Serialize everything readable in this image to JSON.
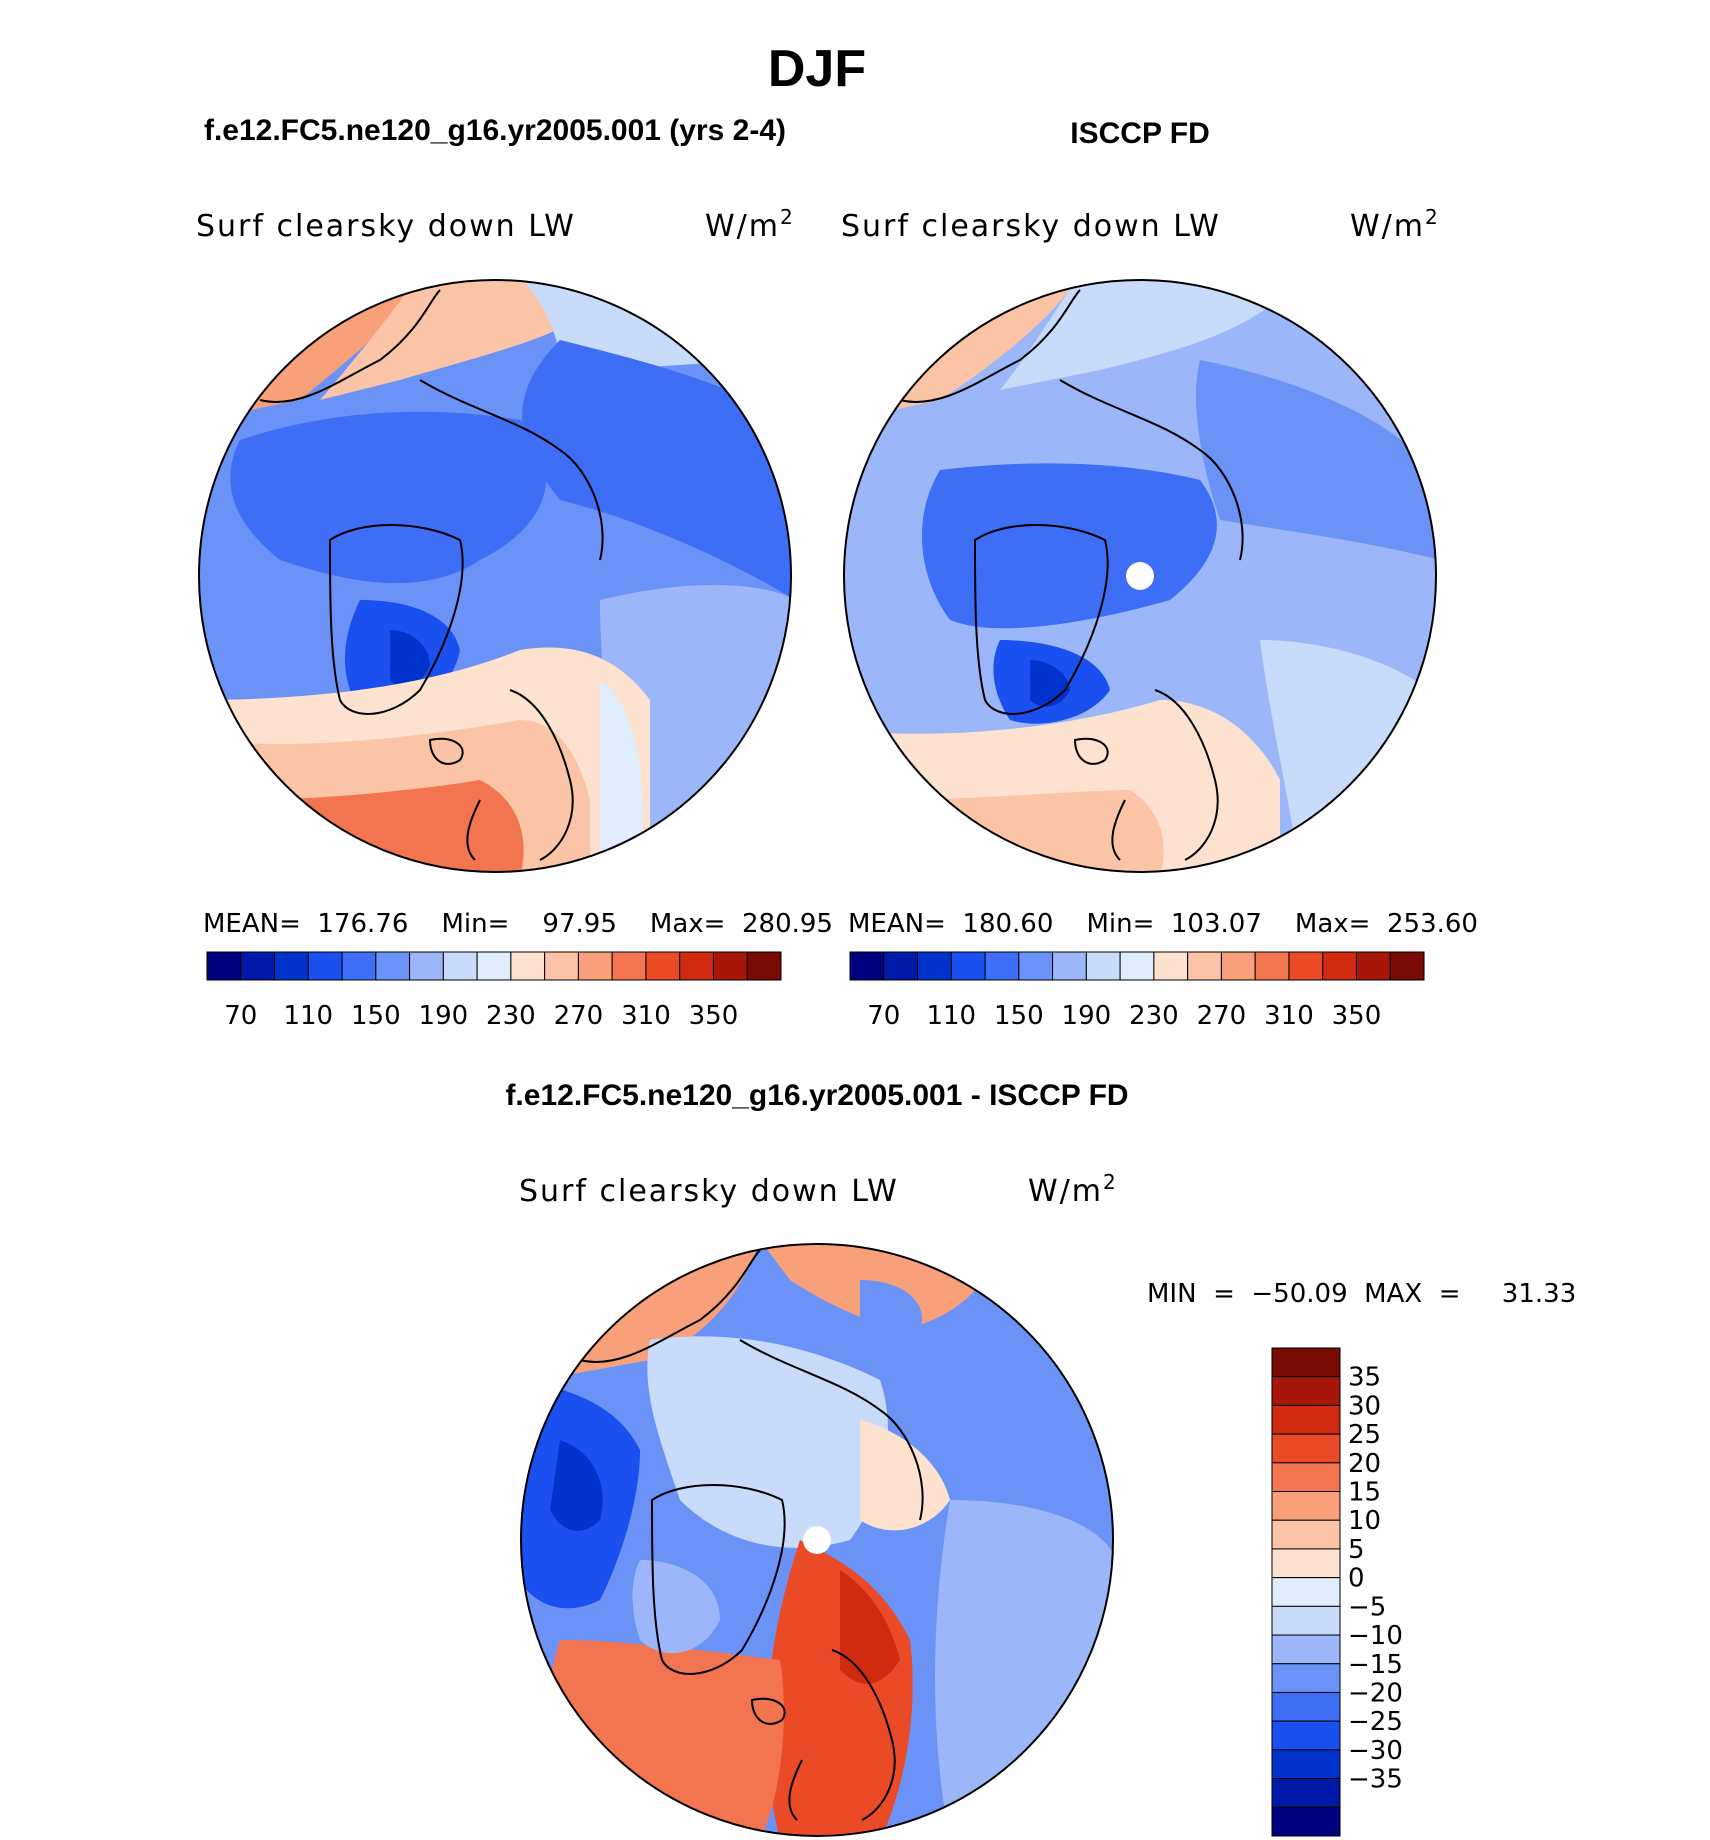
{
  "figure": {
    "season": "DJF",
    "variable": "Surf clearsky down LW",
    "units_base": "W/m",
    "units_exp": "2"
  },
  "colors": {
    "abs_scale": [
      "#00007f",
      "#0019a8",
      "#0033cc",
      "#1a4ff0",
      "#3d6ef5",
      "#6b92f7",
      "#9bb7f9",
      "#c8dbfb",
      "#e0edfd",
      "#fde3cf",
      "#fbc4a6",
      "#f7a07a",
      "#f27550",
      "#ea4a26",
      "#d02a10",
      "#a8170a",
      "#7a0a04"
    ],
    "diff_scale": [
      "#00007f",
      "#0019a8",
      "#0033cc",
      "#1a4ff0",
      "#3d6ef5",
      "#6b92f7",
      "#9bb7f9",
      "#c8dbfb",
      "#e0edfd",
      "#fde3cf",
      "#fbc4a6",
      "#f7a07a",
      "#f27550",
      "#ea4a26",
      "#d02a10",
      "#a8170a",
      "#7a0a04"
    ]
  },
  "panels": {
    "model": {
      "title": "f.e12.FC5.ne120_g16.yr2005.001 (yrs 2-4)",
      "stats_text": "MEAN=  176.76    Min=    97.95    Max=  280.95"
    },
    "obs": {
      "title": "ISCCP FD",
      "stats_text": "MEAN=  180.60    Min=  103.07    Max=  253.60"
    },
    "diff": {
      "title": "f.e12.FC5.ne120_g16.yr2005.001 - ISCCP FD",
      "stats_text": "MIN  =  −50.09  MAX  =     31.33"
    }
  },
  "chart_data": [
    {
      "type": "heatmap",
      "title": "f.e12.FC5.ne120_g16.yr2005.001 (yrs 2-4)",
      "projection": "north polar stereographic",
      "variable": "Surf clearsky down LW",
      "units": "W/m2",
      "mean": 176.76,
      "min": 97.95,
      "max": 280.95,
      "colorbar_ticks": [
        70,
        110,
        150,
        190,
        230,
        270,
        310,
        350
      ],
      "contour_levels": [
        70,
        90,
        110,
        130,
        150,
        170,
        190,
        210,
        230,
        250,
        270,
        290,
        310,
        330,
        350
      ]
    },
    {
      "type": "heatmap",
      "title": "ISCCP FD",
      "projection": "north polar stereographic",
      "variable": "Surf clearsky down LW",
      "units": "W/m2",
      "mean": 180.6,
      "min": 103.07,
      "max": 253.6,
      "colorbar_ticks": [
        70,
        110,
        150,
        190,
        230,
        270,
        310,
        350
      ],
      "contour_levels": [
        70,
        90,
        110,
        130,
        150,
        170,
        190,
        210,
        230,
        250,
        270,
        290,
        310,
        330,
        350
      ]
    },
    {
      "type": "heatmap",
      "title": "f.e12.FC5.ne120_g16.yr2005.001 - ISCCP FD",
      "projection": "north polar stereographic",
      "variable": "Surf clearsky down LW",
      "units": "W/m2",
      "min": -50.09,
      "max": 31.33,
      "colorbar_ticks": [
        "35",
        "30",
        "25",
        "20",
        "15",
        "10",
        "5",
        "0",
        "−5",
        "−10",
        "−15",
        "−20",
        "−25",
        "−30",
        "−35"
      ]
    }
  ]
}
